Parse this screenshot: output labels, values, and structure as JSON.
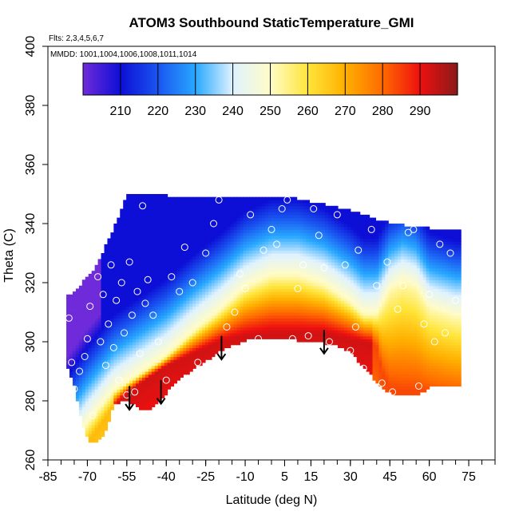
{
  "chart_data": {
    "type": "heatmap",
    "title": "ATOM3 Southbound StaticTemperature_GMI",
    "subtitle_flights": "Flts: 2,3,4,5,6,7",
    "subtitle_dates": "MMDD: 1001,1004,1006,1008,1011,1014",
    "xlabel": "Latitude (deg N)",
    "ylabel": "Theta (C)",
    "xlim": [
      -85,
      85
    ],
    "ylim": [
      260,
      400
    ],
    "x_ticks": [
      -85,
      -70,
      -55,
      -40,
      -25,
      -10,
      5,
      15,
      30,
      45,
      60,
      75
    ],
    "y_ticks": [
      260,
      280,
      300,
      320,
      340,
      360,
      380,
      400
    ],
    "colorbar": {
      "min": 200,
      "max": 300,
      "ticks": [
        210,
        220,
        230,
        240,
        250,
        260,
        270,
        280,
        290
      ],
      "colors": [
        "#6f2bd9",
        "#0d0fd6",
        "#1a55f0",
        "#28a8ff",
        "#dff2ff",
        "#fffcc8",
        "#ffe53a",
        "#ffb000",
        "#ff6a00",
        "#ee1010",
        "#8a1a1a"
      ]
    },
    "arrow_latitudes": [
      -54,
      -42,
      -19,
      20
    ],
    "arrow_theta_range": [
      287,
      295
    ],
    "sample_points": [
      [
        -77,
        308
      ],
      [
        -76,
        293
      ],
      [
        -75,
        284
      ],
      [
        -73,
        290
      ],
      [
        -71,
        295
      ],
      [
        -70,
        301
      ],
      [
        -69,
        312
      ],
      [
        -68,
        275
      ],
      [
        -66,
        322
      ],
      [
        -65,
        300
      ],
      [
        -64,
        316
      ],
      [
        -63,
        292
      ],
      [
        -62,
        306
      ],
      [
        -61,
        326
      ],
      [
        -60,
        298
      ],
      [
        -59,
        314
      ],
      [
        -58,
        287
      ],
      [
        -57,
        320
      ],
      [
        -56,
        303
      ],
      [
        -55,
        282
      ],
      [
        -54,
        327
      ],
      [
        -53,
        309
      ],
      [
        -52,
        283
      ],
      [
        -51,
        317
      ],
      [
        -50,
        296
      ],
      [
        -49,
        346
      ],
      [
        -48,
        313
      ],
      [
        -47,
        321
      ],
      [
        -45,
        309
      ],
      [
        -43,
        300
      ],
      [
        -40,
        287
      ],
      [
        -38,
        322
      ],
      [
        -35,
        317
      ],
      [
        -33,
        332
      ],
      [
        -30,
        320
      ],
      [
        -28,
        293
      ],
      [
        -25,
        330
      ],
      [
        -22,
        340
      ],
      [
        -20,
        348
      ],
      [
        -17,
        305
      ],
      [
        -14,
        310
      ],
      [
        -12,
        323
      ],
      [
        -10,
        318
      ],
      [
        -8,
        343
      ],
      [
        -5,
        301
      ],
      [
        -3,
        331
      ],
      [
        0,
        338
      ],
      [
        2,
        333
      ],
      [
        4,
        345
      ],
      [
        6,
        348
      ],
      [
        8,
        301
      ],
      [
        10,
        318
      ],
      [
        12,
        326
      ],
      [
        14,
        302
      ],
      [
        16,
        345
      ],
      [
        18,
        336
      ],
      [
        20,
        325
      ],
      [
        22,
        300
      ],
      [
        25,
        343
      ],
      [
        28,
        326
      ],
      [
        30,
        297
      ],
      [
        32,
        305
      ],
      [
        33,
        331
      ],
      [
        35,
        291
      ],
      [
        38,
        338
      ],
      [
        40,
        319
      ],
      [
        42,
        286
      ],
      [
        44,
        327
      ],
      [
        46,
        283
      ],
      [
        48,
        311
      ],
      [
        50,
        319
      ],
      [
        52,
        337
      ],
      [
        54,
        338
      ],
      [
        56,
        285
      ],
      [
        58,
        306
      ],
      [
        60,
        316
      ],
      [
        62,
        300
      ],
      [
        64,
        333
      ],
      [
        66,
        303
      ],
      [
        68,
        330
      ],
      [
        70,
        314
      ]
    ]
  }
}
